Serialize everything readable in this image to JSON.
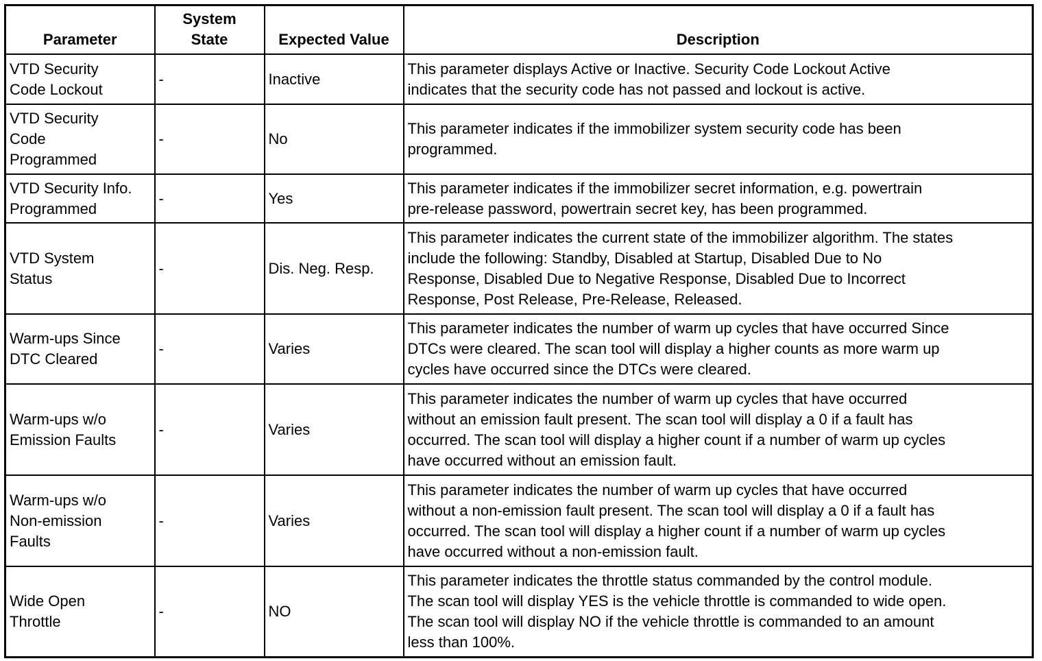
{
  "headers": [
    "Parameter",
    "System\nState",
    "Expected Value",
    "Description"
  ],
  "rows": [
    {
      "parameter": "VTD Security\nCode Lockout",
      "state": "-",
      "expected": "Inactive",
      "description": "This parameter displays Active or Inactive. Security Code Lockout Active\nindicates that the security code has not passed and lockout is active."
    },
    {
      "parameter": "VTD Security\nCode\nProgrammed",
      "state": "-",
      "expected": "No",
      "description": "This parameter indicates if the immobilizer system security code has been\nprogrammed."
    },
    {
      "parameter": "VTD Security Info.\nProgrammed",
      "state": "-",
      "expected": "Yes",
      "description": "This parameter indicates if the immobilizer secret information, e.g. powertrain\npre-release password, powertrain secret key, has been programmed."
    },
    {
      "parameter": "VTD System\nStatus",
      "state": "-",
      "expected": "Dis. Neg. Resp.",
      "description": "This parameter indicates the current state of the immobilizer algorithm. The states\ninclude the following: Standby, Disabled at Startup, Disabled Due to No\nResponse, Disabled Due to Negative Response, Disabled Due to Incorrect\nResponse, Post Release, Pre-Release, Released."
    },
    {
      "parameter": "Warm-ups Since\nDTC Cleared",
      "state": "-",
      "expected": "Varies",
      "description": "This parameter indicates the number of warm up cycles that have occurred Since\nDTCs were cleared. The scan tool will display a higher counts as more warm up\ncycles have occurred since the DTCs were cleared."
    },
    {
      "parameter": "Warm-ups w/o\nEmission Faults",
      "state": "-",
      "expected": "Varies",
      "description": "This parameter indicates the number of warm up cycles that have occurred\nwithout an emission fault present. The scan tool will display a 0 if a fault has\noccurred. The scan tool will display a higher count if a number of warm up cycles\nhave occurred without an emission fault."
    },
    {
      "parameter": "Warm-ups w/o\nNon-emission\nFaults",
      "state": "-",
      "expected": "Varies",
      "description": "This parameter indicates the number of warm up cycles that have occurred\nwithout a non-emission fault present. The scan tool will display a 0 if a fault has\noccurred. The scan tool will display a higher count if a number of warm up cycles\nhave occurred without a non-emission fault."
    },
    {
      "parameter": "Wide Open\nThrottle",
      "state": "-",
      "expected": "NO",
      "description": "This parameter indicates the throttle status commanded by the control module.\nThe scan tool will display YES is the vehicle throttle is commanded to wide open.\nThe scan tool will display NO if the vehicle throttle is commanded to an amount\nless than 100%."
    }
  ]
}
